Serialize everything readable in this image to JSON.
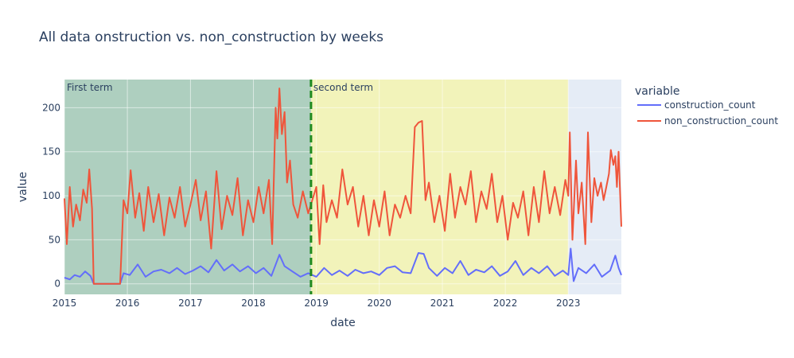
{
  "chart_data": {
    "type": "line",
    "title": "All data onstruction vs. non_construction by weeks",
    "xlabel": "date",
    "ylabel": "value",
    "x_ticks": [
      "2015",
      "2016",
      "2017",
      "2018",
      "2019",
      "2020",
      "2021",
      "2022",
      "2023"
    ],
    "y_ticks": [
      0,
      50,
      100,
      150,
      200
    ],
    "xlim": [
      "2015-01-01",
      "2023-11-05"
    ],
    "ylim": [
      -12,
      232
    ],
    "grid": true,
    "legend": {
      "title": "variable",
      "placement": "right"
    },
    "background_color": "#E5ECF6",
    "regions": [
      {
        "label": "First term",
        "start": "2015-01-01",
        "end": "2018-12-01",
        "color": "#2E8B3E",
        "opacity": 0.3
      },
      {
        "label": "second term",
        "start": "2018-12-01",
        "end": "2023-01-01",
        "color": "#F5F5A5",
        "opacity": 0.75
      }
    ],
    "term_divider": {
      "date": "2018-12-01",
      "color": "#1F8A1F",
      "style": "dashed"
    },
    "series": [
      {
        "name": "construction_count",
        "color": "#636EFA",
        "points": [
          [
            "2015-01-01",
            7
          ],
          [
            "2015-02-01",
            5
          ],
          [
            "2015-03-01",
            10
          ],
          [
            "2015-04-01",
            8
          ],
          [
            "2015-05-01",
            14
          ],
          [
            "2015-06-01",
            9
          ],
          [
            "2015-06-20",
            0
          ],
          [
            "2015-09-01",
            0
          ],
          [
            "2015-11-20",
            0
          ],
          [
            "2015-12-10",
            12
          ],
          [
            "2016-01-15",
            10
          ],
          [
            "2016-03-01",
            22
          ],
          [
            "2016-04-15",
            8
          ],
          [
            "2016-06-01",
            14
          ],
          [
            "2016-07-15",
            16
          ],
          [
            "2016-09-01",
            12
          ],
          [
            "2016-10-15",
            18
          ],
          [
            "2016-12-01",
            11
          ],
          [
            "2017-01-15",
            15
          ],
          [
            "2017-03-01",
            20
          ],
          [
            "2017-04-15",
            13
          ],
          [
            "2017-06-01",
            27
          ],
          [
            "2017-07-15",
            15
          ],
          [
            "2017-09-01",
            22
          ],
          [
            "2017-10-15",
            14
          ],
          [
            "2017-12-01",
            20
          ],
          [
            "2018-01-15",
            12
          ],
          [
            "2018-03-01",
            18
          ],
          [
            "2018-04-15",
            9
          ],
          [
            "2018-06-01",
            33
          ],
          [
            "2018-07-01",
            20
          ],
          [
            "2018-08-15",
            14
          ],
          [
            "2018-10-01",
            8
          ],
          [
            "2018-11-15",
            12
          ],
          [
            "2019-01-01",
            8
          ],
          [
            "2019-02-15",
            18
          ],
          [
            "2019-04-01",
            10
          ],
          [
            "2019-05-15",
            15
          ],
          [
            "2019-07-01",
            9
          ],
          [
            "2019-08-15",
            16
          ],
          [
            "2019-10-01",
            12
          ],
          [
            "2019-11-15",
            14
          ],
          [
            "2020-01-01",
            10
          ],
          [
            "2020-02-15",
            18
          ],
          [
            "2020-04-01",
            20
          ],
          [
            "2020-05-15",
            13
          ],
          [
            "2020-07-01",
            12
          ],
          [
            "2020-08-15",
            35
          ],
          [
            "2020-09-15",
            34
          ],
          [
            "2020-10-15",
            18
          ],
          [
            "2020-12-01",
            9
          ],
          [
            "2021-01-15",
            18
          ],
          [
            "2021-03-01",
            12
          ],
          [
            "2021-04-15",
            26
          ],
          [
            "2021-06-01",
            10
          ],
          [
            "2021-07-15",
            16
          ],
          [
            "2021-09-01",
            13
          ],
          [
            "2021-10-15",
            20
          ],
          [
            "2021-12-01",
            9
          ],
          [
            "2022-01-15",
            14
          ],
          [
            "2022-03-01",
            26
          ],
          [
            "2022-04-15",
            10
          ],
          [
            "2022-06-01",
            18
          ],
          [
            "2022-07-15",
            12
          ],
          [
            "2022-09-01",
            20
          ],
          [
            "2022-10-15",
            9
          ],
          [
            "2022-12-01",
            15
          ],
          [
            "2023-01-01",
            10
          ],
          [
            "2023-01-15",
            40
          ],
          [
            "2023-02-01",
            3
          ],
          [
            "2023-03-01",
            18
          ],
          [
            "2023-04-15",
            12
          ],
          [
            "2023-06-01",
            22
          ],
          [
            "2023-07-15",
            8
          ],
          [
            "2023-09-01",
            15
          ],
          [
            "2023-10-01",
            32
          ],
          [
            "2023-10-20",
            18
          ],
          [
            "2023-11-05",
            10
          ]
        ]
      },
      {
        "name": "non_construction_count",
        "color": "#EF553B",
        "points": [
          [
            "2015-01-01",
            97
          ],
          [
            "2015-01-15",
            45
          ],
          [
            "2015-02-01",
            110
          ],
          [
            "2015-02-20",
            65
          ],
          [
            "2015-03-10",
            90
          ],
          [
            "2015-04-01",
            72
          ],
          [
            "2015-04-20",
            107
          ],
          [
            "2015-05-10",
            92
          ],
          [
            "2015-05-25",
            130
          ],
          [
            "2015-06-10",
            85
          ],
          [
            "2015-06-20",
            0
          ],
          [
            "2015-09-01",
            0
          ],
          [
            "2015-11-20",
            0
          ],
          [
            "2015-12-10",
            95
          ],
          [
            "2016-01-01",
            80
          ],
          [
            "2016-01-20",
            129
          ],
          [
            "2016-02-15",
            75
          ],
          [
            "2016-03-10",
            103
          ],
          [
            "2016-04-05",
            60
          ],
          [
            "2016-05-01",
            110
          ],
          [
            "2016-06-01",
            70
          ],
          [
            "2016-07-01",
            102
          ],
          [
            "2016-08-01",
            55
          ],
          [
            "2016-09-01",
            98
          ],
          [
            "2016-10-01",
            75
          ],
          [
            "2016-11-01",
            110
          ],
          [
            "2016-12-01",
            65
          ],
          [
            "2017-01-01",
            90
          ],
          [
            "2017-02-01",
            118
          ],
          [
            "2017-03-01",
            72
          ],
          [
            "2017-04-01",
            105
          ],
          [
            "2017-05-01",
            40
          ],
          [
            "2017-06-01",
            128
          ],
          [
            "2017-07-01",
            62
          ],
          [
            "2017-08-01",
            100
          ],
          [
            "2017-09-01",
            78
          ],
          [
            "2017-10-01",
            120
          ],
          [
            "2017-11-01",
            55
          ],
          [
            "2017-12-01",
            95
          ],
          [
            "2018-01-01",
            70
          ],
          [
            "2018-02-01",
            110
          ],
          [
            "2018-03-01",
            80
          ],
          [
            "2018-04-01",
            118
          ],
          [
            "2018-04-20",
            45
          ],
          [
            "2018-05-10",
            200
          ],
          [
            "2018-05-20",
            165
          ],
          [
            "2018-06-01",
            222
          ],
          [
            "2018-06-15",
            170
          ],
          [
            "2018-07-01",
            195
          ],
          [
            "2018-07-15",
            115
          ],
          [
            "2018-08-01",
            140
          ],
          [
            "2018-08-20",
            90
          ],
          [
            "2018-09-15",
            75
          ],
          [
            "2018-10-15",
            105
          ],
          [
            "2018-11-15",
            80
          ],
          [
            "2019-01-01",
            110
          ],
          [
            "2019-01-20",
            45
          ],
          [
            "2019-02-10",
            112
          ],
          [
            "2019-03-01",
            70
          ],
          [
            "2019-04-01",
            95
          ],
          [
            "2019-05-01",
            75
          ],
          [
            "2019-06-01",
            130
          ],
          [
            "2019-07-01",
            90
          ],
          [
            "2019-08-01",
            110
          ],
          [
            "2019-09-01",
            65
          ],
          [
            "2019-10-01",
            100
          ],
          [
            "2019-11-01",
            55
          ],
          [
            "2019-12-01",
            95
          ],
          [
            "2020-01-01",
            65
          ],
          [
            "2020-02-01",
            105
          ],
          [
            "2020-03-01",
            55
          ],
          [
            "2020-04-01",
            90
          ],
          [
            "2020-05-01",
            75
          ],
          [
            "2020-06-01",
            100
          ],
          [
            "2020-07-01",
            80
          ],
          [
            "2020-07-25",
            178
          ],
          [
            "2020-08-15",
            183
          ],
          [
            "2020-09-05",
            185
          ],
          [
            "2020-09-25",
            95
          ],
          [
            "2020-10-15",
            115
          ],
          [
            "2020-11-15",
            70
          ],
          [
            "2020-12-15",
            100
          ],
          [
            "2021-01-15",
            60
          ],
          [
            "2021-02-15",
            125
          ],
          [
            "2021-03-15",
            75
          ],
          [
            "2021-04-15",
            110
          ],
          [
            "2021-05-15",
            90
          ],
          [
            "2021-06-15",
            128
          ],
          [
            "2021-07-15",
            70
          ],
          [
            "2021-08-15",
            105
          ],
          [
            "2021-09-15",
            85
          ],
          [
            "2021-10-15",
            125
          ],
          [
            "2021-11-15",
            70
          ],
          [
            "2021-12-15",
            100
          ],
          [
            "2022-01-15",
            50
          ],
          [
            "2022-02-15",
            92
          ],
          [
            "2022-03-15",
            75
          ],
          [
            "2022-04-15",
            105
          ],
          [
            "2022-05-15",
            55
          ],
          [
            "2022-06-15",
            110
          ],
          [
            "2022-07-15",
            70
          ],
          [
            "2022-08-15",
            128
          ],
          [
            "2022-09-15",
            80
          ],
          [
            "2022-10-15",
            110
          ],
          [
            "2022-11-15",
            78
          ],
          [
            "2022-12-15",
            118
          ],
          [
            "2023-01-01",
            100
          ],
          [
            "2023-01-10",
            172
          ],
          [
            "2023-01-25",
            50
          ],
          [
            "2023-02-15",
            140
          ],
          [
            "2023-03-01",
            80
          ],
          [
            "2023-03-20",
            115
          ],
          [
            "2023-04-10",
            45
          ],
          [
            "2023-04-25",
            172
          ],
          [
            "2023-05-15",
            70
          ],
          [
            "2023-06-01",
            120
          ],
          [
            "2023-06-20",
            100
          ],
          [
            "2023-07-10",
            115
          ],
          [
            "2023-07-25",
            95
          ],
          [
            "2023-08-10",
            110
          ],
          [
            "2023-08-25",
            125
          ],
          [
            "2023-09-05",
            152
          ],
          [
            "2023-09-20",
            135
          ],
          [
            "2023-10-01",
            145
          ],
          [
            "2023-10-10",
            110
          ],
          [
            "2023-10-20",
            150
          ],
          [
            "2023-11-05",
            65
          ]
        ]
      }
    ]
  }
}
